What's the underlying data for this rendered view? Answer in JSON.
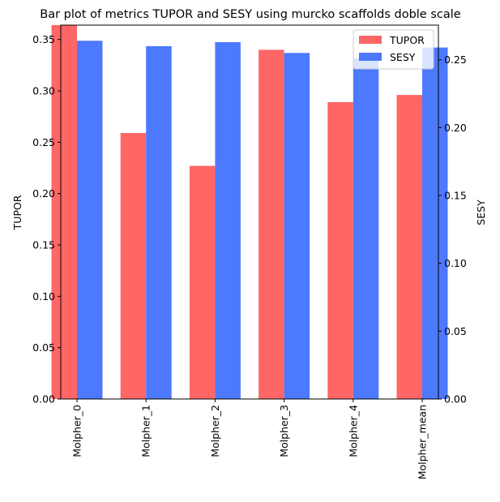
{
  "chart_data": {
    "type": "bar",
    "title": "Bar plot of metrics TUPOR and SESY using murcko scaffolds doble scale",
    "categories": [
      "Molpher_0",
      "Molpher_1",
      "Molpher_2",
      "Molpher_3",
      "Molpher_4",
      "Molpher_mean"
    ],
    "series": [
      {
        "name": "TUPOR",
        "axis": "left",
        "color": "#ff6666",
        "values": [
          0.364,
          0.259,
          0.227,
          0.34,
          0.289,
          0.296
        ]
      },
      {
        "name": "SESY",
        "axis": "right",
        "color": "#4d79ff",
        "values": [
          0.264,
          0.26,
          0.263,
          0.255,
          0.251,
          0.259
        ]
      }
    ],
    "ylabel_left": "TUPOR",
    "ylabel_right": "SESY",
    "ylim_left": [
      0,
      0.364
    ],
    "ylim_right": [
      0,
      0.2755
    ],
    "yticks_left": [
      "0.00",
      "0.05",
      "0.10",
      "0.15",
      "0.20",
      "0.25",
      "0.30",
      "0.35"
    ],
    "yticks_left_values": [
      0,
      0.05,
      0.1,
      0.15,
      0.2,
      0.25,
      0.3,
      0.35
    ],
    "yticks_right": [
      "0.00",
      "0.05",
      "0.10",
      "0.15",
      "0.20",
      "0.25"
    ],
    "yticks_right_values": [
      0,
      0.05,
      0.1,
      0.15,
      0.2,
      0.25
    ],
    "grid": false,
    "legend_position": "top-right"
  }
}
